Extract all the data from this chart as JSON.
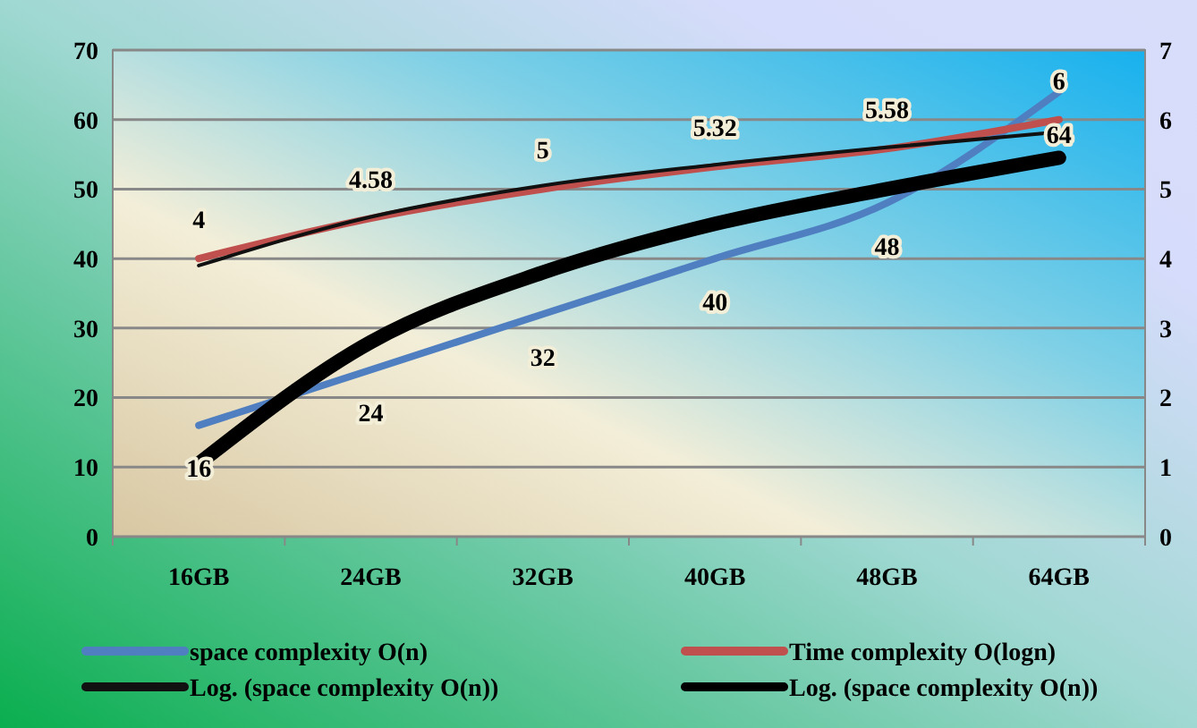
{
  "chart_data": {
    "type": "line",
    "categories": [
      "16GB",
      "24GB",
      "32GB",
      "40GB",
      "48GB",
      "64GB"
    ],
    "series": [
      {
        "name": "space complexity O(n)",
        "color": "#4f7fc0",
        "values": [
          16,
          24,
          32,
          40,
          48,
          64
        ],
        "value_labels": [
          "16",
          "24",
          "32",
          "40",
          "48",
          "64"
        ]
      },
      {
        "name": "Time complexity O(logn)",
        "color": "#c0504d",
        "values": [
          4,
          4.58,
          5,
          5.32,
          5.58,
          6
        ],
        "axis": "y2",
        "value_labels": [
          "4",
          "4.58",
          "5",
          "5.32",
          "5.58",
          "6"
        ]
      },
      {
        "name": "Log. (space complexity O(n))",
        "color": "#111111",
        "values": [
          3.9,
          4.6,
          5.05,
          5.35,
          5.6,
          5.82
        ],
        "axis": "y2"
      },
      {
        "name": "Log. (space complexity O(n))",
        "color": "#000000",
        "values": [
          10.5,
          28,
          38,
          45,
          50,
          54.5
        ]
      }
    ],
    "ylim": [
      0,
      70
    ],
    "yticks": [
      0,
      10,
      20,
      30,
      40,
      50,
      60,
      70
    ],
    "y2lim": [
      0,
      7
    ],
    "y2ticks": [
      0,
      1,
      2,
      3,
      4,
      5,
      6,
      7
    ],
    "grid": "y",
    "legend": "bottom",
    "marker": "none",
    "line_style": "solid"
  }
}
